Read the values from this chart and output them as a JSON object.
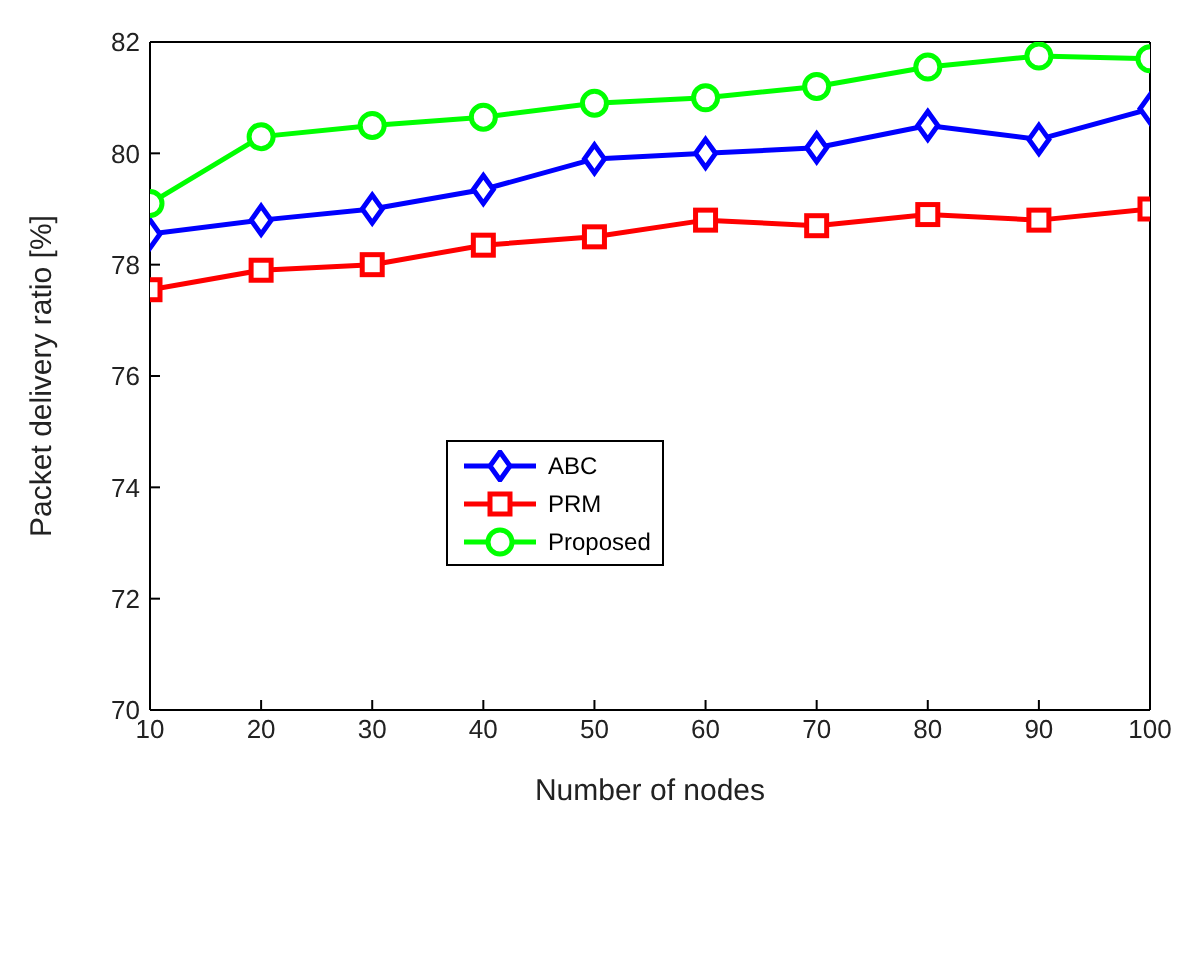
{
  "chart_data": {
    "type": "line",
    "xlabel": "Number of nodes",
    "ylabel": "Packet delivery ratio [%]",
    "x": [
      10,
      20,
      30,
      40,
      50,
      60,
      70,
      80,
      90,
      100
    ],
    "xlim": [
      10,
      100
    ],
    "xticks": [
      10,
      20,
      30,
      40,
      50,
      60,
      70,
      80,
      90,
      100
    ],
    "ylim": [
      70,
      82
    ],
    "yticks": [
      70,
      72,
      74,
      76,
      78,
      80,
      82
    ],
    "grid": false,
    "legend": "center left",
    "line_style": "solid",
    "series": [
      {
        "name": "ABC",
        "color": "#0000ff",
        "marker": "diamond",
        "values": [
          78.55,
          78.8,
          79.0,
          79.35,
          79.9,
          80.0,
          80.1,
          80.5,
          80.25,
          80.8
        ]
      },
      {
        "name": "PRM",
        "color": "#ff0000",
        "marker": "square",
        "values": [
          77.55,
          77.9,
          78.0,
          78.35,
          78.5,
          78.8,
          78.7,
          78.9,
          78.8,
          79.0
        ]
      },
      {
        "name": "Proposed",
        "color": "#00ff00",
        "marker": "circle",
        "values": [
          79.1,
          80.3,
          80.5,
          80.65,
          80.9,
          81.0,
          81.2,
          81.55,
          81.75,
          81.7
        ]
      }
    ]
  }
}
